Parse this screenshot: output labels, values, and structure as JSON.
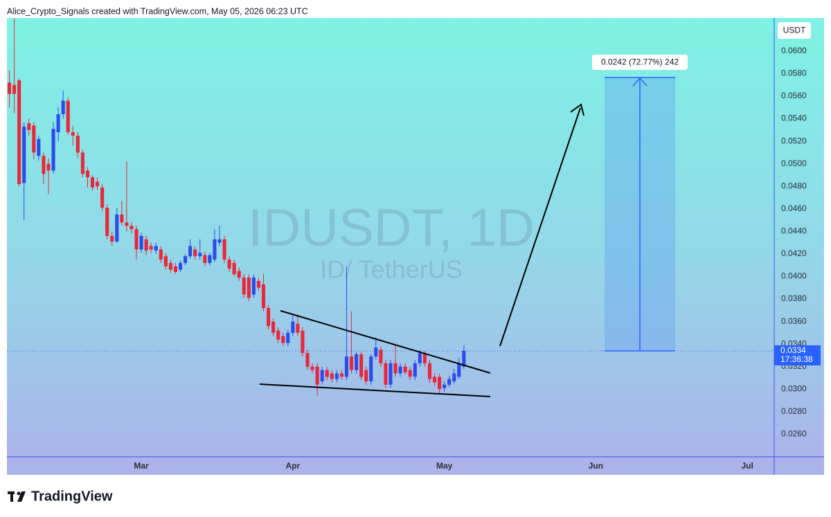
{
  "header": {
    "text": "Alice_Crypto_Signals created with TradingView.com, May 05, 2026 06:23 UTC"
  },
  "chart_data": {
    "type": "candlestick",
    "title": "IDUSDT, 1D",
    "subtitle": "ID/ TetherUS",
    "currency": "USDT",
    "up_color": "#2b4bea",
    "down_color": "#e8283a",
    "open": [
      0.0572,
      0.057,
      0.0574,
      0.0483,
      0.0536,
      0.0534,
      0.0507,
      0.0507,
      0.05,
      0.0494,
      0.0528,
      0.0544,
      0.0556,
      0.0528,
      0.0525,
      0.051,
      0.0494,
      0.0488,
      0.0484,
      0.0479,
      0.0461,
      0.0436,
      0.0431,
      0.0455,
      0.0448,
      0.0445,
      0.0442,
      0.0424,
      0.0433,
      0.0427,
      0.0423,
      0.0424,
      0.0418,
      0.0412,
      0.0409,
      0.0406,
      0.0412,
      0.0418,
      0.0424,
      0.0418,
      0.0419,
      0.0412,
      0.0415,
      0.043,
      0.0433,
      0.0415,
      0.0412,
      0.0405,
      0.0399,
      0.0399,
      0.0384,
      0.0396,
      0.0393,
      0.0372,
      0.036,
      0.0352,
      0.0347,
      0.0341,
      0.035,
      0.0358,
      0.0352,
      0.0332,
      0.032,
      0.032,
      0.0307,
      0.0317,
      0.0314,
      0.0309,
      0.0314,
      0.0311,
      0.0329,
      0.0317,
      0.0331,
      0.0317,
      0.0307,
      0.0329,
      0.0335,
      0.0323,
      0.0304,
      0.0323,
      0.0314,
      0.032,
      0.0317,
      0.0311,
      0.0323,
      0.0331,
      0.0323,
      0.0311,
      0.0311,
      0.0301,
      0.0304,
      0.0307,
      0.0311,
      0.032
    ],
    "high": [
      0.0583,
      0.0629,
      0.0576,
      0.0537,
      0.054,
      0.0537,
      0.0525,
      0.051,
      0.0505,
      0.0537,
      0.055,
      0.0565,
      0.0559,
      0.0534,
      0.0528,
      0.0513,
      0.0497,
      0.049,
      0.0488,
      0.0482,
      0.0464,
      0.044,
      0.0461,
      0.0467,
      0.0502,
      0.0448,
      0.0445,
      0.0439,
      0.0436,
      0.043,
      0.043,
      0.0427,
      0.0421,
      0.0415,
      0.0412,
      0.0414,
      0.042,
      0.0433,
      0.0427,
      0.0433,
      0.0422,
      0.0421,
      0.0442,
      0.0445,
      0.0436,
      0.0418,
      0.0415,
      0.0408,
      0.0402,
      0.0402,
      0.0402,
      0.0399,
      0.0402,
      0.0375,
      0.0363,
      0.0355,
      0.035,
      0.0353,
      0.0366,
      0.0366,
      0.0355,
      0.0335,
      0.0323,
      0.0323,
      0.032,
      0.032,
      0.0317,
      0.0317,
      0.0317,
      0.0409,
      0.0369,
      0.0333,
      0.0333,
      0.032,
      0.0331,
      0.0346,
      0.0338,
      0.0326,
      0.0326,
      0.034,
      0.0323,
      0.0323,
      0.032,
      0.0326,
      0.0335,
      0.0334,
      0.0326,
      0.0314,
      0.0314,
      0.0307,
      0.0312,
      0.0318,
      0.0328,
      0.0339
    ],
    "low": [
      0.055,
      0.0545,
      0.048,
      0.045,
      0.0525,
      0.0504,
      0.0503,
      0.0482,
      0.0473,
      0.0491,
      0.052,
      0.054,
      0.0526,
      0.0516,
      0.0505,
      0.0488,
      0.0479,
      0.0476,
      0.0477,
      0.0458,
      0.0433,
      0.0427,
      0.043,
      0.0445,
      0.044,
      0.0438,
      0.0415,
      0.0421,
      0.0419,
      0.0421,
      0.042,
      0.0412,
      0.0406,
      0.0403,
      0.0402,
      0.0404,
      0.041,
      0.0416,
      0.0415,
      0.0415,
      0.0409,
      0.041,
      0.0413,
      0.0427,
      0.0412,
      0.0404,
      0.04,
      0.0396,
      0.0381,
      0.0378,
      0.0381,
      0.0387,
      0.0369,
      0.0353,
      0.0347,
      0.0341,
      0.0338,
      0.0338,
      0.0347,
      0.0347,
      0.0329,
      0.0317,
      0.0314,
      0.0294,
      0.0304,
      0.0308,
      0.0306,
      0.0306,
      0.0308,
      0.0308,
      0.0314,
      0.0314,
      0.0308,
      0.0304,
      0.0304,
      0.0326,
      0.032,
      0.0301,
      0.0301,
      0.0311,
      0.0311,
      0.0313,
      0.0308,
      0.0308,
      0.032,
      0.032,
      0.0306,
      0.0303,
      0.0296,
      0.0298,
      0.0302,
      0.0305,
      0.0309,
      0.0318
    ],
    "close": [
      0.0562,
      0.0562,
      0.0482,
      0.0533,
      0.053,
      0.051,
      0.0522,
      0.0491,
      0.0494,
      0.0531,
      0.0544,
      0.0556,
      0.0528,
      0.0525,
      0.051,
      0.0491,
      0.0488,
      0.0479,
      0.048,
      0.0461,
      0.0436,
      0.0431,
      0.0455,
      0.0448,
      0.0445,
      0.0442,
      0.0424,
      0.0436,
      0.0423,
      0.0424,
      0.0427,
      0.0415,
      0.0409,
      0.0406,
      0.0404,
      0.0412,
      0.0418,
      0.0427,
      0.0418,
      0.0421,
      0.0412,
      0.0419,
      0.0433,
      0.0433,
      0.0415,
      0.0407,
      0.0402,
      0.0399,
      0.0384,
      0.0381,
      0.0399,
      0.039,
      0.0372,
      0.0356,
      0.035,
      0.0344,
      0.0341,
      0.035,
      0.036,
      0.035,
      0.0332,
      0.032,
      0.0317,
      0.0304,
      0.0317,
      0.0311,
      0.0309,
      0.0314,
      0.0311,
      0.0329,
      0.0317,
      0.0331,
      0.0311,
      0.0307,
      0.0329,
      0.0337,
      0.0323,
      0.0304,
      0.0323,
      0.0314,
      0.032,
      0.0315,
      0.0311,
      0.0323,
      0.0332,
      0.0323,
      0.0309,
      0.0306,
      0.03,
      0.0304,
      0.0309,
      0.0314,
      0.0323,
      0.0334
    ],
    "xlim": [
      -0.5,
      156.5
    ],
    "xticks": [
      {
        "value": 27,
        "label": "Mar"
      },
      {
        "value": 58,
        "label": "Apr"
      },
      {
        "value": 89,
        "label": "May"
      },
      {
        "value": 120,
        "label": "Jun"
      },
      {
        "value": 151,
        "label": "Jul"
      }
    ],
    "ylim": [
      0.024,
      0.063
    ],
    "yticks": [
      {
        "value": 0.026,
        "label": "0.0260"
      },
      {
        "value": 0.028,
        "label": "0.0280"
      },
      {
        "value": 0.03,
        "label": "0.0300"
      },
      {
        "value": 0.032,
        "label": "0.0320"
      },
      {
        "value": 0.034,
        "label": "0.0340"
      },
      {
        "value": 0.036,
        "label": "0.0360"
      },
      {
        "value": 0.038,
        "label": "0.0380"
      },
      {
        "value": 0.04,
        "label": "0.0400"
      },
      {
        "value": 0.042,
        "label": "0.0420"
      },
      {
        "value": 0.044,
        "label": "0.0440"
      },
      {
        "value": 0.046,
        "label": "0.0460"
      },
      {
        "value": 0.048,
        "label": "0.0480"
      },
      {
        "value": 0.05,
        "label": "0.0500"
      },
      {
        "value": 0.052,
        "label": "0.0520"
      },
      {
        "value": 0.054,
        "label": "0.0540"
      },
      {
        "value": 0.056,
        "label": "0.0560"
      },
      {
        "value": 0.058,
        "label": "0.0580"
      },
      {
        "value": 0.06,
        "label": "0.0600"
      }
    ],
    "grid": false,
    "last_price": "0.0334",
    "countdown": "17:36:38",
    "annotation": "0.0242 (72.77%) 242"
  },
  "footer": {
    "logo": "TradingView"
  }
}
